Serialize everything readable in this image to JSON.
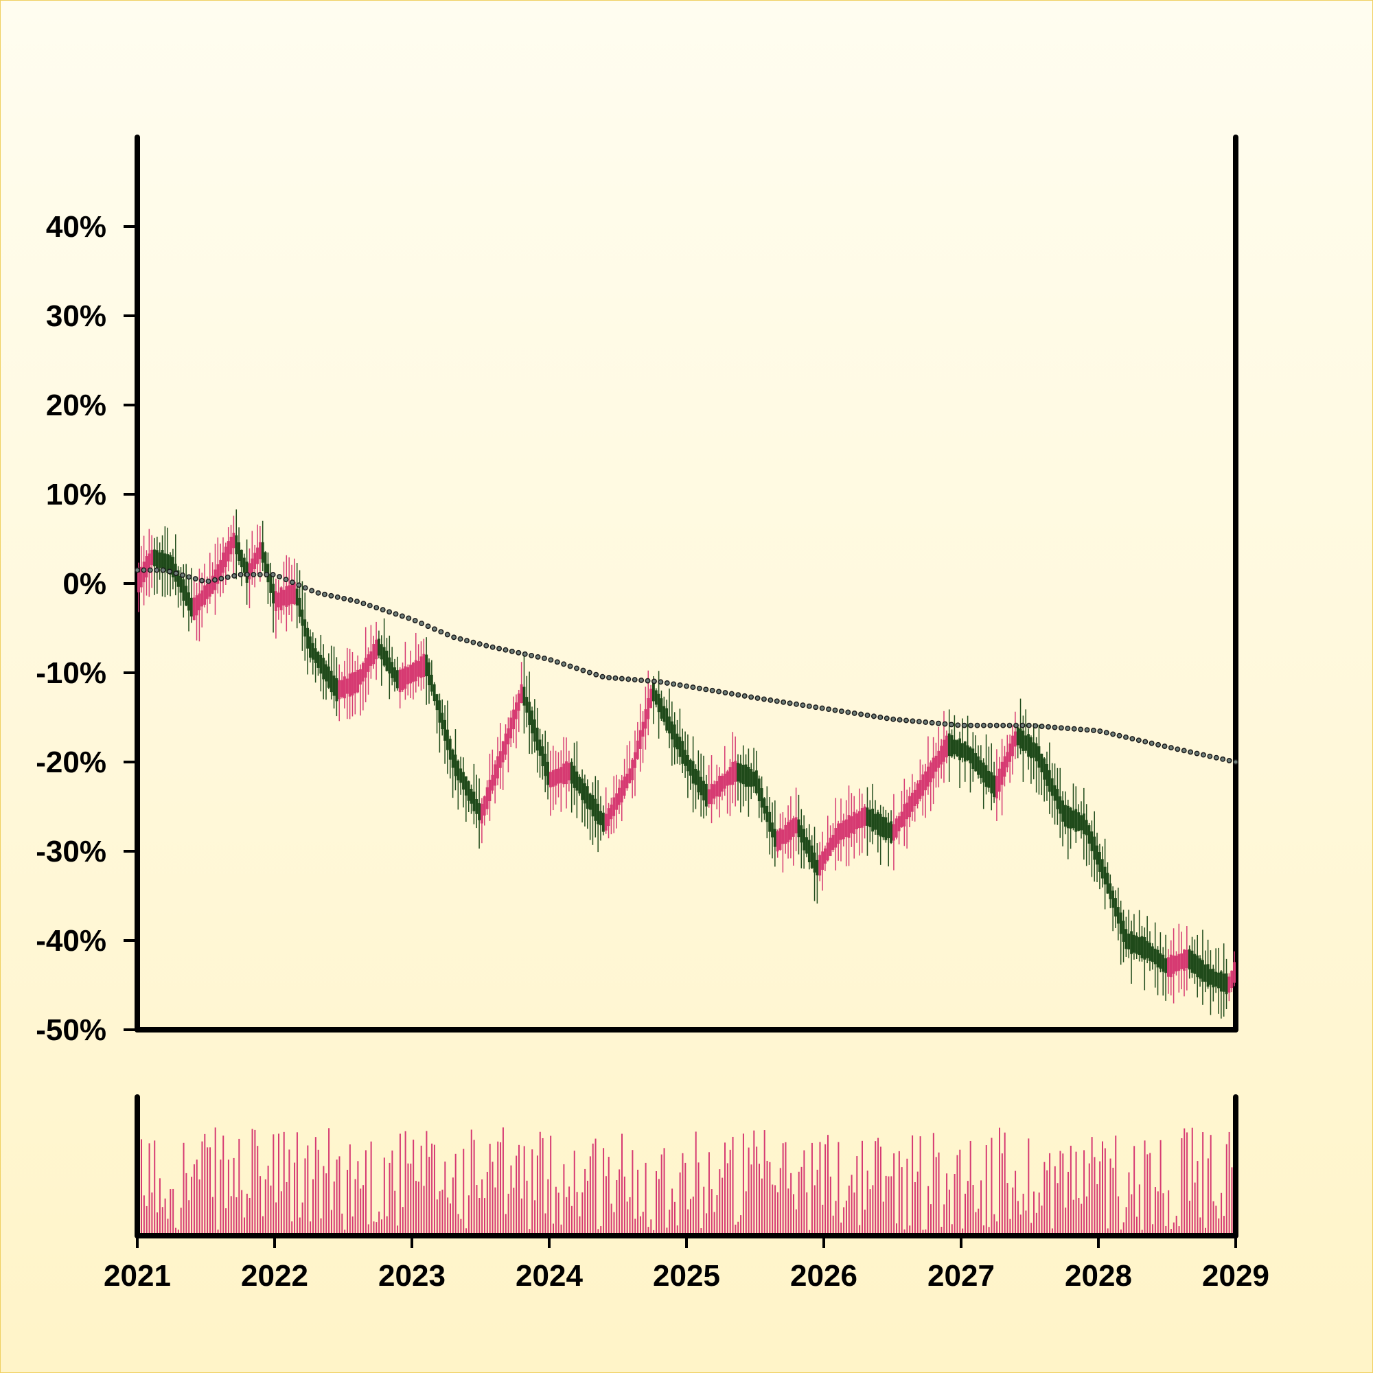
{
  "chart_data": {
    "type": "candlestick",
    "title": "",
    "xlabel": "",
    "ylabel": "",
    "ylim": [
      -50,
      50
    ],
    "xlim": [
      2021,
      2029
    ],
    "y_ticks": [
      {
        "value": 40,
        "label": "40%"
      },
      {
        "value": 30,
        "label": "30%"
      },
      {
        "value": 20,
        "label": "20%"
      },
      {
        "value": 10,
        "label": "10%"
      },
      {
        "value": 0,
        "label": "0%"
      },
      {
        "value": -10,
        "label": "-10%"
      },
      {
        "value": -20,
        "label": "-20%"
      },
      {
        "value": -30,
        "label": "-30%"
      },
      {
        "value": -40,
        "label": "-40%"
      },
      {
        "value": -50,
        "label": "-50%"
      }
    ],
    "x_ticks": [
      {
        "value": 2021,
        "label": "2021"
      },
      {
        "value": 2022,
        "label": "2022"
      },
      {
        "value": 2023,
        "label": "2023"
      },
      {
        "value": 2024,
        "label": "2024"
      },
      {
        "value": 2025,
        "label": "2025"
      },
      {
        "value": 2026,
        "label": "2026"
      },
      {
        "value": 2027,
        "label": "2027"
      },
      {
        "value": 2028,
        "label": "2028"
      },
      {
        "value": 2029,
        "label": "2029"
      }
    ],
    "price_path": [
      [
        2021.0,
        0
      ],
      [
        2021.1,
        3
      ],
      [
        2021.25,
        2
      ],
      [
        2021.4,
        -3
      ],
      [
        2021.55,
        0
      ],
      [
        2021.7,
        5
      ],
      [
        2021.8,
        1
      ],
      [
        2021.9,
        4
      ],
      [
        2022.0,
        -2
      ],
      [
        2022.15,
        -1
      ],
      [
        2022.25,
        -7
      ],
      [
        2022.45,
        -12
      ],
      [
        2022.6,
        -11
      ],
      [
        2022.75,
        -7
      ],
      [
        2022.9,
        -11
      ],
      [
        2023.1,
        -9
      ],
      [
        2023.3,
        -20
      ],
      [
        2023.5,
        -26
      ],
      [
        2023.7,
        -17
      ],
      [
        2023.8,
        -12
      ],
      [
        2024.0,
        -22
      ],
      [
        2024.15,
        -21
      ],
      [
        2024.4,
        -27
      ],
      [
        2024.6,
        -21
      ],
      [
        2024.75,
        -12
      ],
      [
        2025.0,
        -20
      ],
      [
        2025.15,
        -24
      ],
      [
        2025.35,
        -21
      ],
      [
        2025.5,
        -22
      ],
      [
        2025.65,
        -29
      ],
      [
        2025.8,
        -27
      ],
      [
        2025.95,
        -32
      ],
      [
        2026.1,
        -28
      ],
      [
        2026.3,
        -26
      ],
      [
        2026.5,
        -28
      ],
      [
        2026.7,
        -23
      ],
      [
        2026.9,
        -18
      ],
      [
        2027.05,
        -19
      ],
      [
        2027.25,
        -23
      ],
      [
        2027.4,
        -17
      ],
      [
        2027.55,
        -19
      ],
      [
        2027.75,
        -26
      ],
      [
        2027.9,
        -27
      ],
      [
        2028.05,
        -33
      ],
      [
        2028.2,
        -40
      ],
      [
        2028.35,
        -41
      ],
      [
        2028.5,
        -43
      ],
      [
        2028.65,
        -42
      ],
      [
        2028.8,
        -44
      ],
      [
        2028.95,
        -45
      ],
      [
        2029.0,
        -43
      ]
    ],
    "trend_line": [
      [
        2021.0,
        1.5
      ],
      [
        2021.2,
        1.5
      ],
      [
        2021.5,
        0.2
      ],
      [
        2021.75,
        1.0
      ],
      [
        2022.0,
        1.0
      ],
      [
        2022.3,
        -1.0
      ],
      [
        2022.6,
        -2.0
      ],
      [
        2023.0,
        -4.0
      ],
      [
        2023.3,
        -6.0
      ],
      [
        2023.55,
        -7.0
      ],
      [
        2024.0,
        -8.5
      ],
      [
        2024.4,
        -10.5
      ],
      [
        2024.8,
        -11.0
      ],
      [
        2025.0,
        -11.5
      ],
      [
        2025.5,
        -12.8
      ],
      [
        2026.0,
        -14.0
      ],
      [
        2026.5,
        -15.2
      ],
      [
        2027.0,
        -15.9
      ],
      [
        2027.5,
        -15.9
      ],
      [
        2028.0,
        -16.5
      ],
      [
        2028.5,
        -18.3
      ],
      [
        2029.0,
        -20.0
      ]
    ],
    "colors": {
      "up": "#d63a72",
      "down": "#1f4a1a",
      "trend": "#1a1a1a",
      "trend_fill": "#6f7f7a",
      "volume": "#d63a72",
      "axis": "#000000"
    },
    "grid": false,
    "legend": "none"
  }
}
